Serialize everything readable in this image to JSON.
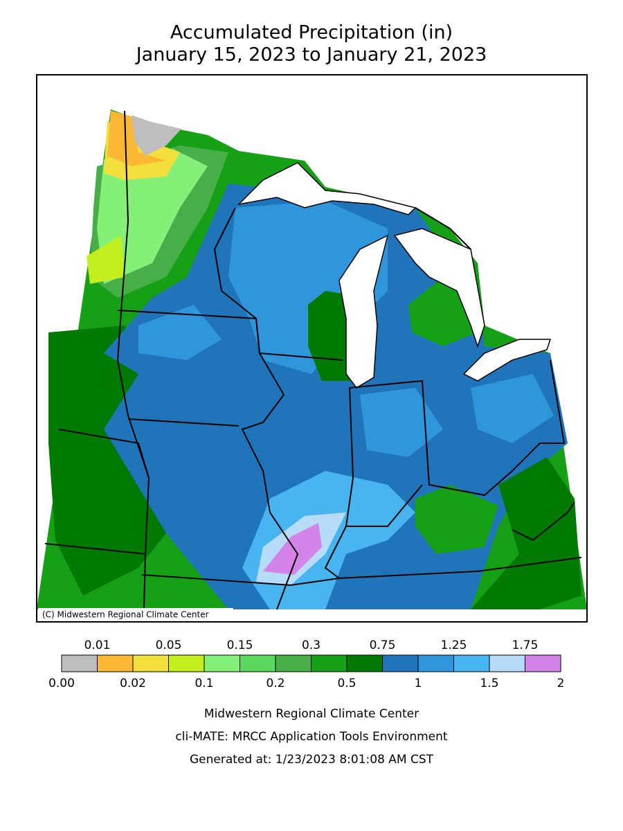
{
  "title": [
    "Accumulated Precipitation (in)",
    "January 15, 2023 to January 21, 2023"
  ],
  "copyright": "(C) Midwestern Regional Climate Center",
  "legend": {
    "labels": [
      "0.00",
      "0.01",
      "0.02",
      "0.05",
      "0.1",
      "0.15",
      "0.2",
      "0.3",
      "0.5",
      "0.75",
      "1",
      "1.25",
      "1.5",
      "1.75",
      "2"
    ],
    "colors": [
      "#bebebe",
      "#fbb834",
      "#f3df3c",
      "#c4ee1e",
      "#84f078",
      "#5cd85c",
      "#48ae48",
      "#16a016",
      "#007a00",
      "#1f74ba",
      "#2f96dc",
      "#48b4f0",
      "#b6dcfa",
      "#d484e8"
    ]
  },
  "footer": [
    "Midwestern Regional Climate Center",
    "cli-MATE: MRCC Application Tools Environment",
    "Generated at: 1/23/2023 8:01:08 AM CST"
  ]
}
